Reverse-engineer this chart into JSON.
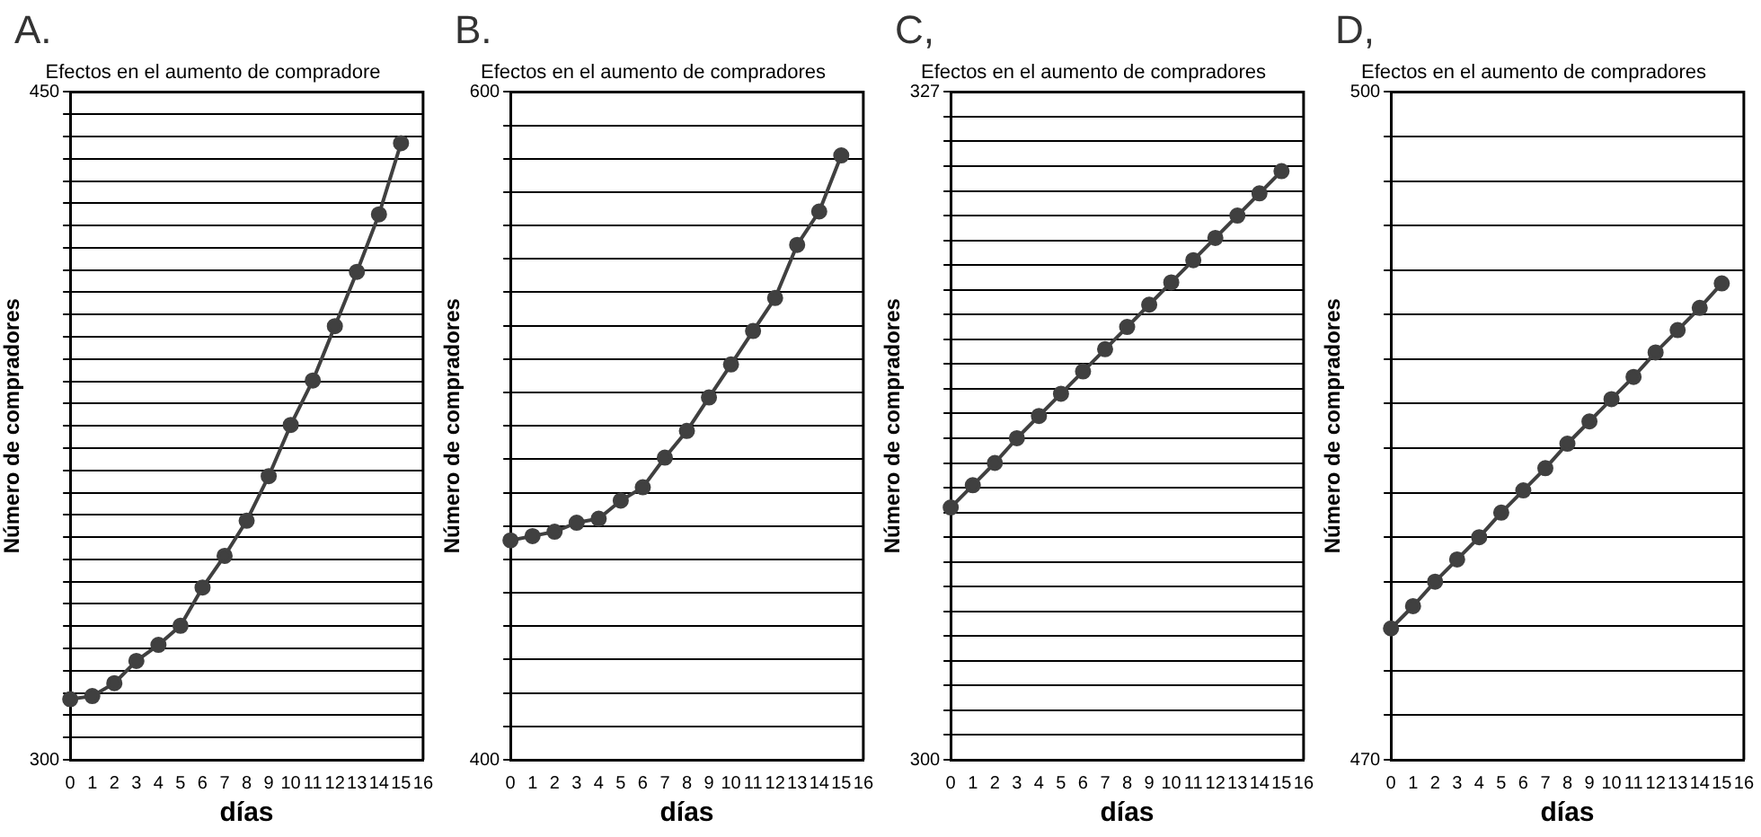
{
  "chart_data": [
    {
      "type": "line",
      "title": "Efectos en el aumento de compradore",
      "xlabel": "días",
      "ylabel": "Número de compradores",
      "annotations": [
        "A."
      ],
      "x": [
        0,
        1,
        2,
        3,
        4,
        5,
        6,
        7,
        8,
        9,
        10,
        11,
        12,
        13,
        14,
        15
      ],
      "series": [
        {
          "color": "#404040",
          "values": [
            313.6,
            314.3,
            317.2,
            322.2,
            325.8,
            330.1,
            338.7,
            345.8,
            353.7,
            363.7,
            375.2,
            385.2,
            397.4,
            409.6,
            422.5,
            438.5
          ]
        }
      ],
      "xlim": [
        0,
        16
      ],
      "xticks": [
        0,
        1,
        2,
        3,
        4,
        5,
        6,
        7,
        8,
        9,
        10,
        11,
        12,
        13,
        14,
        15,
        16
      ],
      "ylim": [
        300,
        450
      ],
      "yticks": [
        300,
        {
          "value": 305,
          "label": null
        },
        {
          "value": 310,
          "label": null
        },
        {
          "value": 315,
          "label": null
        },
        {
          "value": 320,
          "label": null
        },
        {
          "value": 325,
          "label": null
        },
        {
          "value": 330,
          "label": null
        },
        {
          "value": 335,
          "label": null
        },
        {
          "value": 340,
          "label": null
        },
        {
          "value": 345,
          "label": null
        },
        {
          "value": 350,
          "label": null
        },
        {
          "value": 355,
          "label": null
        },
        {
          "value": 360,
          "label": null
        },
        {
          "value": 365,
          "label": null
        },
        {
          "value": 370,
          "label": null
        },
        {
          "value": 375,
          "label": null
        },
        {
          "value": 380,
          "label": null
        },
        {
          "value": 385,
          "label": null
        },
        {
          "value": 390,
          "label": null
        },
        {
          "value": 395,
          "label": null
        },
        {
          "value": 400,
          "label": null
        },
        {
          "value": 405,
          "label": null
        },
        {
          "value": 410,
          "label": null
        },
        {
          "value": 415,
          "label": null
        },
        {
          "value": 420,
          "label": null
        },
        {
          "value": 425,
          "label": null
        },
        {
          "value": 430,
          "label": null
        },
        {
          "value": 435,
          "label": null
        },
        {
          "value": 440,
          "label": null
        },
        {
          "value": 445,
          "label": null
        },
        450
      ],
      "grid": "y",
      "marker": "circle",
      "line_style": "solid",
      "legend": false
    },
    {
      "type": "line",
      "title": "Efectos en el aumento de compradores",
      "xlabel": "días",
      "ylabel": "Número de compradores",
      "annotations": [
        "B."
      ],
      "x": [
        0,
        1,
        2,
        3,
        4,
        5,
        6,
        7,
        8,
        9,
        10,
        11,
        12,
        13,
        14,
        15
      ],
      "series": [
        {
          "color": "#404040",
          "values": [
            465.7,
            467,
            468.3,
            471,
            472.2,
            477.6,
            481.6,
            490.5,
            498.5,
            508.5,
            518.4,
            528.4,
            538.3,
            554.2,
            564.2,
            581
          ]
        }
      ],
      "xlim": [
        0,
        16
      ],
      "xticks": [
        0,
        1,
        2,
        3,
        4,
        5,
        6,
        7,
        8,
        9,
        10,
        11,
        12,
        13,
        14,
        15,
        16
      ],
      "ylim": [
        400,
        600
      ],
      "yticks": [
        400,
        {
          "value": 410,
          "label": null
        },
        {
          "value": 420,
          "label": null
        },
        {
          "value": 430,
          "label": null
        },
        {
          "value": 440,
          "label": null
        },
        {
          "value": 450,
          "label": null
        },
        {
          "value": 460,
          "label": null
        },
        {
          "value": 470,
          "label": null
        },
        {
          "value": 480,
          "label": null
        },
        {
          "value": 490,
          "label": null
        },
        {
          "value": 500,
          "label": null
        },
        {
          "value": 510,
          "label": null
        },
        {
          "value": 520,
          "label": null
        },
        {
          "value": 530,
          "label": null
        },
        {
          "value": 540,
          "label": null
        },
        {
          "value": 550,
          "label": null
        },
        {
          "value": 560,
          "label": null
        },
        {
          "value": 570,
          "label": null
        },
        {
          "value": 580,
          "label": null
        },
        {
          "value": 590,
          "label": null
        },
        600
      ],
      "grid": "y",
      "marker": "circle",
      "line_style": "solid",
      "legend": false
    },
    {
      "type": "line",
      "title": "Efectos en el aumento de compradores",
      "xlabel": "días",
      "ylabel": "Número de compradores",
      "annotations": [
        "C,"
      ],
      "x": [
        0,
        1,
        2,
        3,
        4,
        5,
        6,
        7,
        8,
        9,
        10,
        11,
        12,
        13,
        14,
        15
      ],
      "series": [
        {
          "color": "#404040",
          "values": [
            310.2,
            311.1,
            312,
            313,
            313.9,
            314.8,
            315.7,
            316.6,
            317.5,
            318.4,
            319.3,
            320.2,
            321.1,
            322,
            322.9,
            323.8
          ]
        }
      ],
      "xlim": [
        0,
        16
      ],
      "xticks": [
        0,
        1,
        2,
        3,
        4,
        5,
        6,
        7,
        8,
        9,
        10,
        11,
        12,
        13,
        14,
        15,
        16
      ],
      "ylim": [
        300,
        327
      ],
      "yticks": [
        300,
        {
          "value": 301,
          "label": null
        },
        {
          "value": 302,
          "label": null
        },
        {
          "value": 303,
          "label": null
        },
        {
          "value": 304,
          "label": null
        },
        {
          "value": 305,
          "label": null
        },
        {
          "value": 306,
          "label": null
        },
        {
          "value": 307,
          "label": null
        },
        {
          "value": 308,
          "label": null
        },
        {
          "value": 309,
          "label": null
        },
        {
          "value": 310,
          "label": null
        },
        {
          "value": 311,
          "label": null
        },
        {
          "value": 312,
          "label": null
        },
        {
          "value": 313,
          "label": null
        },
        {
          "value": 314,
          "label": null
        },
        {
          "value": 315,
          "label": null
        },
        {
          "value": 316,
          "label": null
        },
        {
          "value": 317,
          "label": null
        },
        {
          "value": 318,
          "label": null
        },
        {
          "value": 319,
          "label": null
        },
        {
          "value": 320,
          "label": null
        },
        {
          "value": 321,
          "label": null
        },
        {
          "value": 322,
          "label": null
        },
        {
          "value": 323,
          "label": null
        },
        {
          "value": 324,
          "label": null
        },
        {
          "value": 325,
          "label": null
        },
        {
          "value": 326,
          "label": null
        },
        327
      ],
      "grid": "y",
      "marker": "circle",
      "line_style": "solid",
      "legend": false
    },
    {
      "type": "line",
      "title": "Efectos en el aumento de compradores",
      "xlabel": "días",
      "ylabel": "Número de compradores",
      "annotations": [
        "D,"
      ],
      "x": [
        0,
        1,
        2,
        3,
        4,
        5,
        6,
        7,
        8,
        9,
        10,
        11,
        12,
        13,
        14,
        15
      ],
      "series": [
        {
          "color": "#404040",
          "values": [
            475.9,
            476.9,
            478,
            479,
            480,
            481.1,
            482.1,
            483.1,
            484.2,
            485.2,
            486.2,
            487.2,
            488.3,
            489.3,
            490.3,
            491.4
          ]
        }
      ],
      "xlim": [
        0,
        16
      ],
      "xticks": [
        0,
        1,
        2,
        3,
        4,
        5,
        6,
        7,
        8,
        9,
        10,
        11,
        12,
        13,
        14,
        15,
        16
      ],
      "ylim": [
        470,
        500
      ],
      "yticks": [
        470,
        {
          "value": 472,
          "label": null
        },
        {
          "value": 474,
          "label": null
        },
        {
          "value": 476,
          "label": null
        },
        {
          "value": 478,
          "label": null
        },
        {
          "value": 480,
          "label": null
        },
        {
          "value": 482,
          "label": null
        },
        {
          "value": 484,
          "label": null
        },
        {
          "value": 486,
          "label": null
        },
        {
          "value": 488,
          "label": null
        },
        {
          "value": 490,
          "label": null
        },
        {
          "value": 492,
          "label": null
        },
        {
          "value": 494,
          "label": null
        },
        {
          "value": 496,
          "label": null
        },
        {
          "value": 498,
          "label": null
        },
        500
      ],
      "grid": "y",
      "marker": "circle",
      "line_style": "solid",
      "legend": false
    }
  ]
}
